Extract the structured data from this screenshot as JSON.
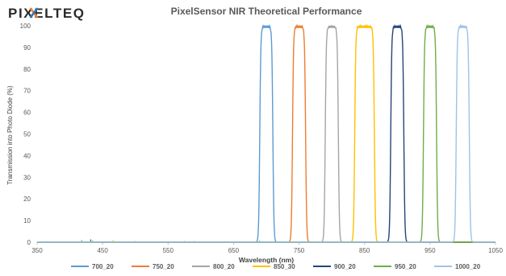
{
  "logo": {
    "text": "PIXELTEQ"
  },
  "chart_data": {
    "type": "line",
    "title": "PixelSensor NIR Theoretical Performance",
    "xlabel": "Wavelength (nm)",
    "ylabel": "Transmission into Photo Diode (%)",
    "xlim": [
      350,
      1050
    ],
    "ylim": [
      0,
      100
    ],
    "x_ticks": [
      350,
      450,
      550,
      650,
      750,
      850,
      950,
      1050
    ],
    "y_ticks": [
      0,
      10,
      20,
      30,
      40,
      50,
      60,
      70,
      80,
      90,
      100
    ],
    "grid": false,
    "legend_position": "bottom",
    "series": [
      {
        "name": "700_20",
        "color": "#5B9BD5",
        "center": 700,
        "fwhm": 20,
        "peak": 100
      },
      {
        "name": "750_20",
        "color": "#ED7D31",
        "center": 750,
        "fwhm": 20,
        "peak": 100
      },
      {
        "name": "800_20",
        "color": "#A5A5A5",
        "center": 800,
        "fwhm": 20,
        "peak": 100
      },
      {
        "name": "850_30",
        "color": "#FFC000",
        "center": 850,
        "fwhm": 30,
        "peak": 100
      },
      {
        "name": "900_20",
        "color": "#264478",
        "center": 900,
        "fwhm": 20,
        "peak": 100
      },
      {
        "name": "950_20",
        "color": "#70AD47",
        "center": 950,
        "fwhm": 20,
        "peak": 100
      },
      {
        "name": "1000_20",
        "color": "#9DC3E6",
        "center": 1000,
        "fwhm": 20,
        "peak": 100
      }
    ]
  }
}
